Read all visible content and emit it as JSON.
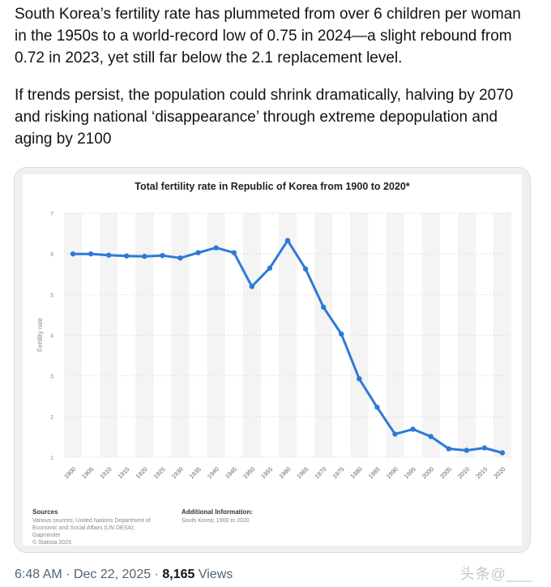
{
  "tweet": {
    "paragraph1": "South Korea’s fertility rate has plummeted from over 6 children per woman in the 1950s to a world-record low of 0.75 in 2024—a slight rebound from 0.72 in 2023, yet still far below the 2.1 replacement level.",
    "paragraph2": "If trends persist, the population could shrink dramatically, halving by 2070 and risking national ‘disappearance’ through extreme depopulation and aging by 2100"
  },
  "chart_data": {
    "type": "line",
    "title": "Total fertility rate in Republic of Korea from 1900 to 2020*",
    "xlabel": "",
    "ylabel": "Fertility rate",
    "ylim": [
      1,
      7
    ],
    "yticks": [
      "1",
      "2",
      "3",
      "4",
      "5",
      "6",
      "7"
    ],
    "categories": [
      "1900",
      "1905",
      "1910",
      "1915",
      "1920",
      "1925",
      "1930",
      "1935",
      "1940",
      "1945",
      "1950",
      "1955",
      "1960",
      "1965",
      "1970",
      "1975",
      "1980",
      "1985",
      "1990",
      "1995",
      "2000",
      "2005",
      "2010",
      "2015",
      "2020"
    ],
    "series": [
      {
        "name": "Fertility rate",
        "color": "#2d7ad6",
        "values": [
          6.0,
          6.0,
          5.97,
          5.95,
          5.94,
          5.96,
          5.9,
          6.03,
          6.15,
          6.03,
          5.2,
          5.65,
          6.33,
          5.63,
          4.69,
          4.03,
          2.93,
          2.23,
          1.57,
          1.69,
          1.51,
          1.21,
          1.17,
          1.23,
          1.11
        ]
      }
    ],
    "grid": true,
    "legend": "none"
  },
  "chart_footer": {
    "sources_heading": "Sources",
    "sources_lines": [
      "Various sources; United Nations Department of",
      "Economic and Social Affairs (UN DESA);",
      "Gapminder",
      "© Statista 2025"
    ],
    "additional_heading": "Additional Information:",
    "additional_text": "South Korea; 1900 to 2020"
  },
  "meta": {
    "time": "6:48 AM",
    "separator": "·",
    "date": "Dec 22, 2025",
    "views_count": "8,165",
    "views_label": "Views"
  },
  "watermark": "头条@___"
}
